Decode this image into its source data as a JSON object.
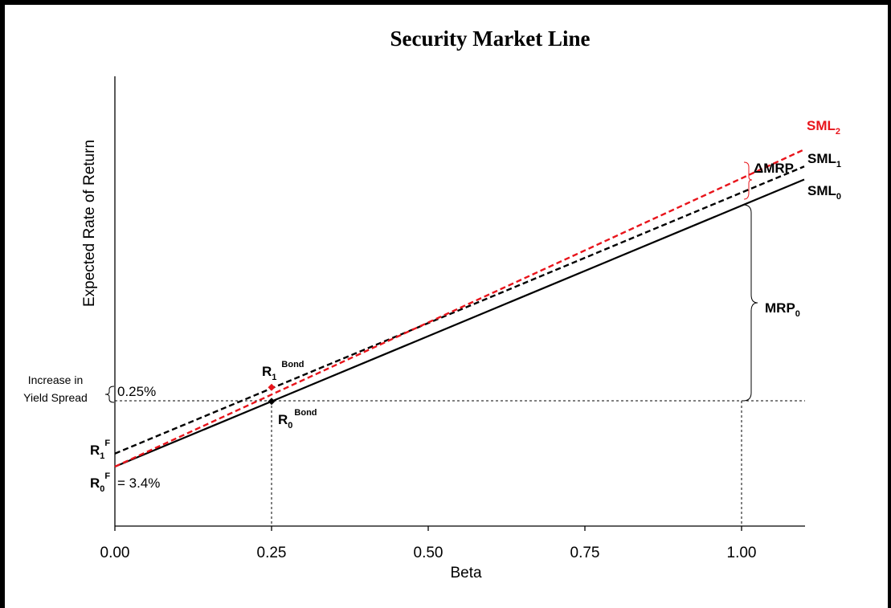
{
  "chart_data": {
    "type": "line",
    "title": "Security Market Line",
    "xlabel": "Beta",
    "ylabel": "Expected Rate of Return",
    "x_ticks": [
      "0.00",
      "0.25",
      "0.50",
      "0.75",
      "1.00"
    ],
    "xlim": [
      0,
      1.1
    ],
    "grid": false,
    "series": [
      {
        "name": "SML0",
        "style": "solid",
        "color": "#000000",
        "x": [
          0,
          1.1
        ],
        "y_rel": [
          0,
          1.1
        ]
      },
      {
        "name": "SML1",
        "style": "dashed",
        "color": "#000000",
        "x": [
          0,
          1.1
        ],
        "y_rel": [
          0.05,
          1.15
        ]
      },
      {
        "name": "SML2",
        "style": "dashed",
        "color": "#e8141b",
        "x": [
          0,
          1.1
        ],
        "y_rel": [
          0,
          1.215
        ]
      }
    ],
    "points": [
      {
        "name": "R1 Bond",
        "x": 0.25,
        "y_rel": 0.304,
        "color": "#e8141b"
      },
      {
        "name": "R0 Bond",
        "x": 0.25,
        "y_rel": 0.25,
        "color": "#000000"
      }
    ],
    "annotations": {
      "sml2_label": "SML",
      "sml2_sub": "2",
      "sml1_label": "SML",
      "sml1_sub": "1",
      "sml0_label": "SML",
      "sml0_sub": "0",
      "dmrp_label": "ΔMRP",
      "mrp_label": "MRP",
      "mrp_sub": "0",
      "r1bond_label": "R",
      "r1bond_sub": "1",
      "r1bond_sup": "Bond",
      "r0bond_label": "R",
      "r0bond_sub": "0",
      "r0bond_sup": "Bond",
      "r1f_label": "R",
      "r1f_sub": "1",
      "r1f_sup": "F",
      "r0f_label": "R",
      "r0f_sub": "0",
      "r0f_sup": "F",
      "r0f_value": "= 3.4%",
      "spread_value": "0.25%",
      "spread_line1": "Increase in",
      "spread_line2": "Yield Spread"
    }
  }
}
